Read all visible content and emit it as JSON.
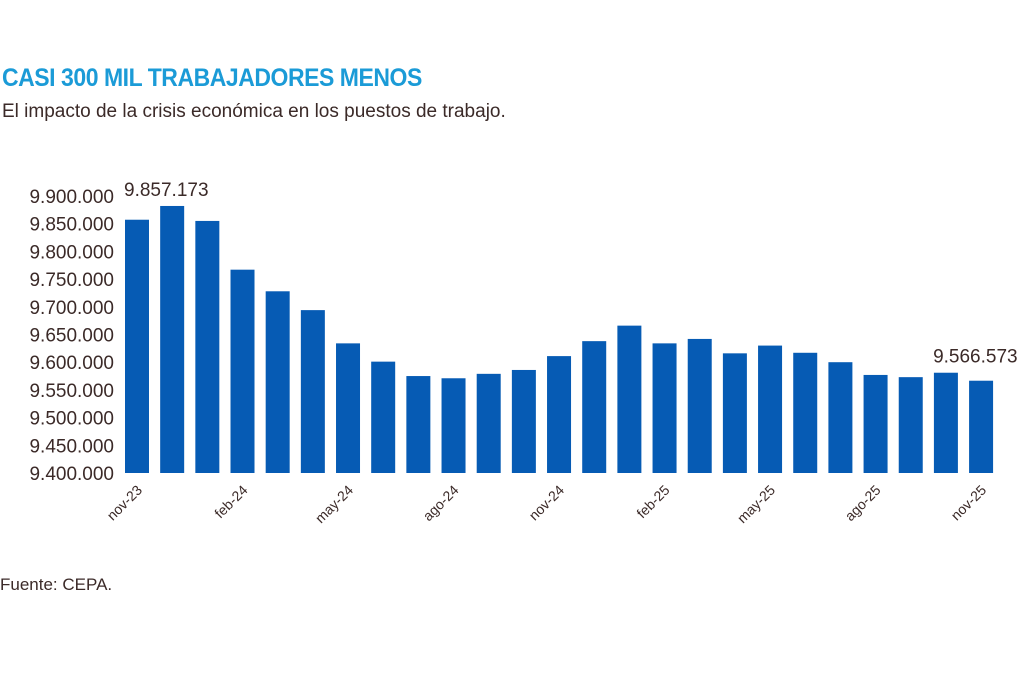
{
  "chart_data": {
    "type": "bar",
    "title": "CASI 300 MIL TRABAJADORES MENOS",
    "subtitle": "El impacto de la crisis económica en los puestos de trabajo.",
    "source": "Fuente: CEPA.",
    "categories": [
      "nov-23",
      "dic-23",
      "ene-24",
      "feb-24",
      "mar-24",
      "abr-24",
      "may-24",
      "jun-24",
      "jul-24",
      "ago-24",
      "sep-24",
      "oct-24",
      "nov-24",
      "dic-24",
      "ene-25",
      "feb-25",
      "mar-25",
      "abr-25",
      "may-25",
      "jun-25",
      "jul-25",
      "ago-25",
      "sep-25",
      "oct-25",
      "nov-25"
    ],
    "x_tick_labels": [
      "nov-23",
      "feb-24",
      "may-24",
      "ago-24",
      "nov-24",
      "feb-25",
      "may-25",
      "ago-25",
      "nov-25"
    ],
    "values": [
      9857173,
      9882000,
      9855000,
      9767000,
      9728000,
      9694000,
      9634000,
      9601000,
      9575000,
      9571000,
      9579000,
      9586000,
      9611000,
      9638000,
      9666000,
      9634000,
      9642000,
      9616000,
      9630000,
      9617000,
      9600000,
      9577000,
      9573000,
      9581000,
      9566573
    ],
    "data_labels": [
      {
        "category": "nov-23",
        "text": "9.857.173"
      },
      {
        "category": "nov-25",
        "text": "9.566.573"
      }
    ],
    "y_tick_labels": [
      "9.400.000",
      "9.450.000",
      "9.500.000",
      "9.550.000",
      "9.600.000",
      "9.650.000",
      "9.700.000",
      "9.750.000",
      "9.800.000",
      "9.850.000",
      "9.900.000"
    ],
    "ylim": [
      9400000,
      9900000
    ],
    "grid": false,
    "colors": {
      "bar": "#065bb4",
      "title": "#1b9bd7",
      "text": "#3b2a28"
    }
  }
}
